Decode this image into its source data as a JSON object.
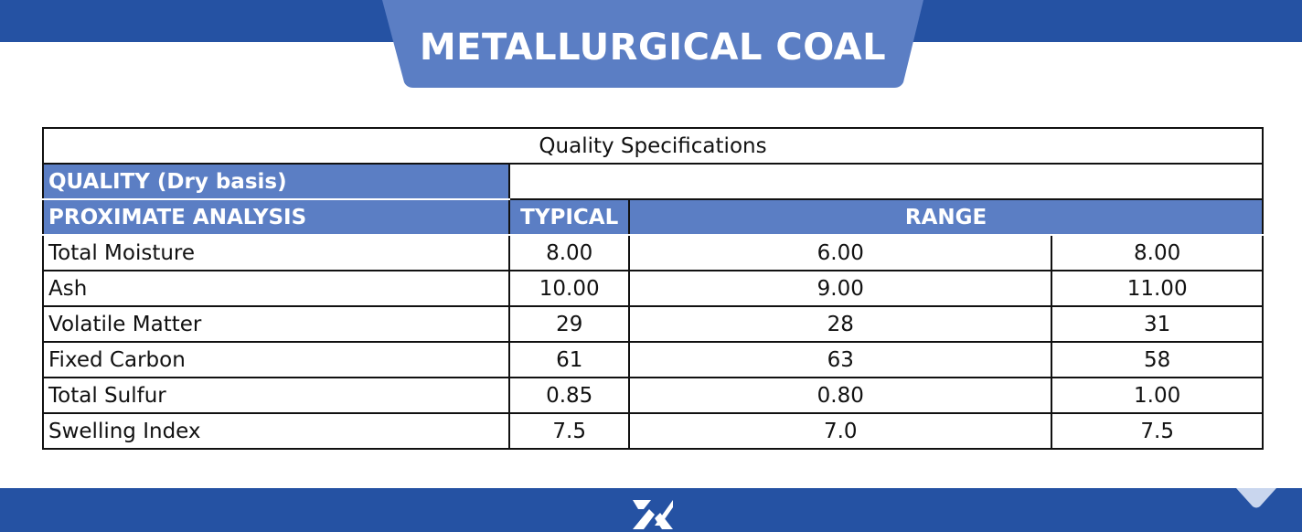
{
  "header": {
    "title": "METALLURGICAL COAL"
  },
  "table": {
    "caption": "Quality Specifications",
    "section": "QUALITY (Dry basis)",
    "columns": [
      "PROXIMATE ANALYSIS",
      "TYPICAL",
      "RANGE"
    ],
    "rows": [
      [
        "Total Moisture",
        "8.00",
        "6.00",
        "8.00"
      ],
      [
        "Ash",
        "10.00",
        "9.00",
        "11.00"
      ],
      [
        "Volatile Matter",
        "29",
        "28",
        "31"
      ],
      [
        "Fixed Carbon",
        "61",
        "63",
        "58"
      ],
      [
        "Total Sulfur",
        "0.85",
        "0.80",
        "1.00"
      ],
      [
        "Swelling Index",
        "7.5",
        "7.0",
        "7.5"
      ]
    ]
  }
}
